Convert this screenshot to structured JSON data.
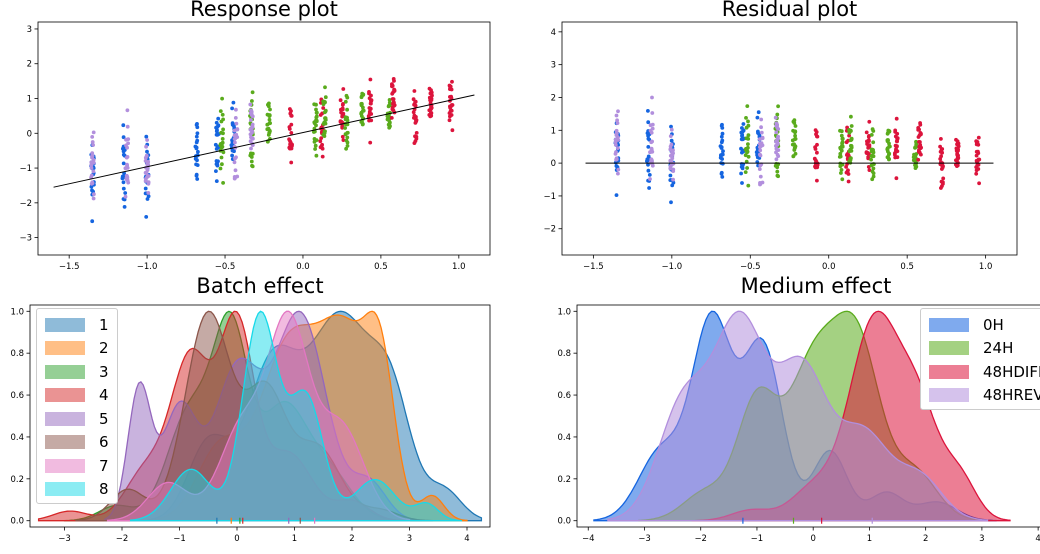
{
  "panels": {
    "response": {
      "title": "Response plot",
      "xticks": [
        "−1.5",
        "−1.0",
        "−0.5",
        "0.0",
        "0.5",
        "1.0"
      ],
      "yticks": [
        "−3",
        "−2",
        "−1",
        "0",
        "1",
        "2",
        "3"
      ]
    },
    "residual": {
      "title": "Residual plot",
      "xticks": [
        "−1.5",
        "−1.0",
        "−0.5",
        "0.0",
        "0.5",
        "1.0"
      ],
      "yticks": [
        "−2",
        "−1",
        "0",
        "1",
        "2",
        "3",
        "4"
      ]
    },
    "batch": {
      "title": "Batch effect",
      "xticks": [
        "−3",
        "−2",
        "−1",
        "0",
        "1",
        "2",
        "3",
        "4"
      ],
      "yticks": [
        "0.0",
        "0.2",
        "0.4",
        "0.6",
        "0.8",
        "1.0"
      ]
    },
    "medium": {
      "title": "Medium effect",
      "xticks": [
        "−4",
        "−3",
        "−2",
        "−1",
        "0",
        "1",
        "2",
        "3",
        "4"
      ],
      "yticks": [
        "0.0",
        "0.2",
        "0.4",
        "0.6",
        "0.8",
        "1.0"
      ]
    }
  },
  "legends": {
    "batch": [
      "1",
      "2",
      "3",
      "4",
      "5",
      "6",
      "7",
      "8"
    ],
    "medium": [
      "0H",
      "24H",
      "48HDIFF",
      "48HREV"
    ]
  },
  "colors": {
    "medium": [
      "#1565e0",
      "#5aab1c",
      "#dc143c",
      "#b28fdd"
    ],
    "batch": [
      "#1f77b4",
      "#ff7f0e",
      "#2ca02c",
      "#d62728",
      "#9467bd",
      "#8c564b",
      "#e377c2",
      "#17d9e8"
    ]
  },
  "chart_data": [
    {
      "type": "scatter",
      "title": "Response plot",
      "xlim": [
        -1.7,
        1.2
      ],
      "ylim": [
        -3.5,
        3.2
      ],
      "grid": false,
      "fit_line": {
        "x": [
          -1.6,
          1.1
        ],
        "y": [
          -1.55,
          1.1
        ]
      },
      "groups": [
        {
          "x": -1.35,
          "medium": 0,
          "center": -1.1,
          "spread": 1.6
        },
        {
          "x": -1.35,
          "medium": 3,
          "center": -1.0,
          "spread": 1.7
        },
        {
          "x": -1.15,
          "medium": 0,
          "center": -0.9,
          "spread": 1.9
        },
        {
          "x": -1.13,
          "medium": 3,
          "center": -0.8,
          "spread": 2.2
        },
        {
          "x": -1.0,
          "medium": 0,
          "center": -1.1,
          "spread": 1.6
        },
        {
          "x": -1.0,
          "medium": 3,
          "center": -1.2,
          "spread": 1.5
        },
        {
          "x": -0.68,
          "medium": 0,
          "center": -0.4,
          "spread": 1.4
        },
        {
          "x": -0.55,
          "medium": 0,
          "center": -0.3,
          "spread": 1.6
        },
        {
          "x": -0.52,
          "medium": 1,
          "center": -0.4,
          "spread": 1.8
        },
        {
          "x": -0.45,
          "medium": 0,
          "center": -0.1,
          "spread": 1.8
        },
        {
          "x": -0.43,
          "medium": 3,
          "center": -0.3,
          "spread": 1.7
        },
        {
          "x": -0.33,
          "medium": 1,
          "center": 0.0,
          "spread": 2.0
        },
        {
          "x": -0.33,
          "medium": 3,
          "center": 0.1,
          "spread": 1.6
        },
        {
          "x": -0.22,
          "medium": 1,
          "center": 0.2,
          "spread": 1.2
        },
        {
          "x": -0.08,
          "medium": 2,
          "center": -0.1,
          "spread": 1.3
        },
        {
          "x": 0.08,
          "medium": 1,
          "center": 0.3,
          "spread": 1.4
        },
        {
          "x": 0.12,
          "medium": 2,
          "center": 0.2,
          "spread": 1.5
        },
        {
          "x": 0.14,
          "medium": 1,
          "center": 0.5,
          "spread": 1.4
        },
        {
          "x": 0.25,
          "medium": 2,
          "center": 0.5,
          "spread": 1.4
        },
        {
          "x": 0.28,
          "medium": 1,
          "center": 0.3,
          "spread": 1.4
        },
        {
          "x": 0.38,
          "medium": 1,
          "center": 0.7,
          "spread": 1.1
        },
        {
          "x": 0.43,
          "medium": 2,
          "center": 0.8,
          "spread": 1.1
        },
        {
          "x": 0.55,
          "medium": 1,
          "center": 0.6,
          "spread": 1.1
        },
        {
          "x": 0.58,
          "medium": 2,
          "center": 1.0,
          "spread": 1.1
        },
        {
          "x": 0.72,
          "medium": 2,
          "center": 0.5,
          "spread": 1.4
        },
        {
          "x": 0.82,
          "medium": 2,
          "center": 0.8,
          "spread": 1.1
        },
        {
          "x": 0.95,
          "medium": 2,
          "center": 0.9,
          "spread": 1.2
        }
      ]
    },
    {
      "type": "scatter",
      "title": "Residual plot",
      "xlim": [
        -1.7,
        1.2
      ],
      "ylim": [
        -2.8,
        4.3
      ],
      "grid": false,
      "fit_line": {
        "x": [
          -1.55,
          1.05
        ],
        "y": [
          0,
          0
        ]
      }
    },
    {
      "type": "area",
      "title": "Batch effect",
      "xlim": [
        -3.6,
        4.4
      ],
      "ylim": [
        -0.03,
        1.03
      ],
      "legend": "top-left",
      "series": [
        {
          "name": "1",
          "peaks": [
            [
              -0.5,
              0.38,
              0.35
            ],
            [
              0.6,
              0.75,
              0.45
            ],
            [
              1.8,
              1.0,
              0.55
            ],
            [
              2.7,
              0.5,
              0.35
            ],
            [
              3.6,
              0.15,
              0.3
            ]
          ]
        },
        {
          "name": "2",
          "peaks": [
            [
              -0.3,
              0.35,
              0.4
            ],
            [
              0.9,
              0.85,
              0.5
            ],
            [
              1.9,
              0.85,
              0.45
            ],
            [
              2.5,
              0.6,
              0.25
            ],
            [
              3.4,
              0.12,
              0.2
            ]
          ]
        },
        {
          "name": "3",
          "peaks": [
            [
              -2.1,
              0.08,
              0.3
            ],
            [
              -0.8,
              0.6,
              0.4
            ],
            [
              -0.1,
              0.95,
              0.3
            ],
            [
              0.8,
              0.6,
              0.4
            ],
            [
              1.6,
              0.25,
              0.4
            ]
          ]
        },
        {
          "name": "4",
          "peaks": [
            [
              -2.9,
              0.05,
              0.3
            ],
            [
              -1.6,
              0.25,
              0.35
            ],
            [
              -0.8,
              0.85,
              0.35
            ],
            [
              0.0,
              1.0,
              0.3
            ],
            [
              0.9,
              0.35,
              0.4
            ],
            [
              2.0,
              0.1,
              0.3
            ]
          ]
        },
        {
          "name": "5",
          "peaks": [
            [
              -1.7,
              0.35,
              0.2
            ],
            [
              -1.0,
              0.3,
              0.3
            ],
            [
              0.0,
              0.4,
              0.4
            ],
            [
              1.1,
              0.55,
              0.45
            ],
            [
              2.3,
              0.1,
              0.3
            ]
          ]
        },
        {
          "name": "6",
          "peaks": [
            [
              -1.9,
              0.15,
              0.3
            ],
            [
              -0.5,
              1.0,
              0.4
            ],
            [
              0.5,
              0.6,
              0.35
            ],
            [
              1.4,
              0.35,
              0.4
            ],
            [
              2.5,
              0.05,
              0.3
            ]
          ]
        },
        {
          "name": "7",
          "peaks": [
            [
              -1.2,
              0.2,
              0.35
            ],
            [
              0.1,
              0.5,
              0.4
            ],
            [
              0.9,
              1.0,
              0.35
            ],
            [
              1.8,
              0.5,
              0.4
            ]
          ]
        },
        {
          "name": "8",
          "peaks": [
            [
              -0.8,
              0.25,
              0.35
            ],
            [
              0.4,
              1.0,
              0.3
            ],
            [
              1.2,
              0.6,
              0.3
            ],
            [
              2.4,
              0.2,
              0.35
            ],
            [
              3.3,
              0.08,
              0.2
            ]
          ]
        }
      ],
      "rug": [
        -0.35,
        -0.1,
        0.05,
        0.1,
        0.9,
        1.1,
        1.35
      ]
    },
    {
      "type": "area",
      "title": "Medium effect",
      "xlim": [
        -4.2,
        4.3
      ],
      "ylim": [
        -0.03,
        1.03
      ],
      "legend": "top-right",
      "series": [
        {
          "name": "0H",
          "peaks": [
            [
              -2.7,
              0.3,
              0.4
            ],
            [
              -1.8,
              0.85,
              0.35
            ],
            [
              -0.9,
              0.75,
              0.35
            ],
            [
              0.3,
              0.3,
              0.3
            ],
            [
              1.3,
              0.12,
              0.3
            ],
            [
              2.2,
              0.08,
              0.35
            ]
          ]
        },
        {
          "name": "24H",
          "peaks": [
            [
              -1.9,
              0.15,
              0.4
            ],
            [
              -1.0,
              0.6,
              0.35
            ],
            [
              0.0,
              0.8,
              0.45
            ],
            [
              0.8,
              0.85,
              0.4
            ],
            [
              1.8,
              0.25,
              0.4
            ]
          ]
        },
        {
          "name": "48HDIFF",
          "peaks": [
            [
              -1.1,
              0.05,
              0.35
            ],
            [
              0.0,
              0.15,
              0.4
            ],
            [
              1.1,
              0.95,
              0.45
            ],
            [
              1.9,
              0.45,
              0.35
            ],
            [
              2.6,
              0.2,
              0.3
            ]
          ]
        },
        {
          "name": "48HREV",
          "peaks": [
            [
              -2.3,
              0.55,
              0.45
            ],
            [
              -1.3,
              0.9,
              0.45
            ],
            [
              -0.2,
              0.7,
              0.45
            ],
            [
              0.9,
              0.4,
              0.45
            ],
            [
              1.9,
              0.2,
              0.4
            ]
          ]
        }
      ],
      "rug": [
        -1.25,
        -0.35,
        0.15,
        1.05
      ]
    }
  ]
}
